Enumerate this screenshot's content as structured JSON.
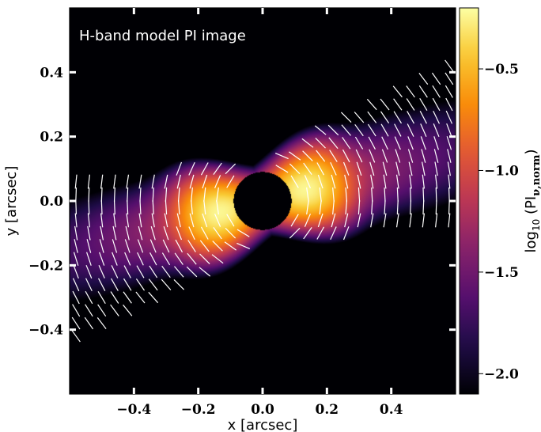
{
  "chart_data": {
    "type": "heatmap",
    "annotation": "H-band model PI image",
    "xlabel": "x [arcsec]",
    "ylabel": "y [arcsec]",
    "xlim": [
      -0.6,
      0.6
    ],
    "ylim": [
      -0.6,
      0.6
    ],
    "xticks": [
      -0.4,
      -0.2,
      0.0,
      0.2,
      0.4
    ],
    "yticks": [
      -0.4,
      -0.2,
      0.0,
      0.2,
      0.4
    ],
    "xtick_labels": [
      "−0.4",
      "−0.2",
      "0.0",
      "0.2",
      "0.4"
    ],
    "ytick_labels": [
      "−0.4",
      "−0.2",
      "0.0",
      "0.2",
      "0.4"
    ],
    "colorbar": {
      "label_main": "log",
      "label_sub": "10",
      "label_rest": " (PI",
      "label_subscript": "ν,norm",
      "label_close": ")",
      "range": [
        -2.1,
        -0.2
      ],
      "ticks": [
        -2.0,
        -1.5,
        -1.0,
        -0.5
      ],
      "tick_labels": [
        "−2.0",
        "−1.5",
        "−1.0",
        "−0.5"
      ],
      "colormap": "inferno"
    },
    "disk": {
      "position_angle_deg": 15,
      "mask_radius_arcsec": 0.09,
      "peak_offset_arcsec": 0.14,
      "peak_value": -0.2,
      "floor_value": -2.1
    },
    "background_color": "#000000",
    "vector_color": "#ffffff"
  }
}
